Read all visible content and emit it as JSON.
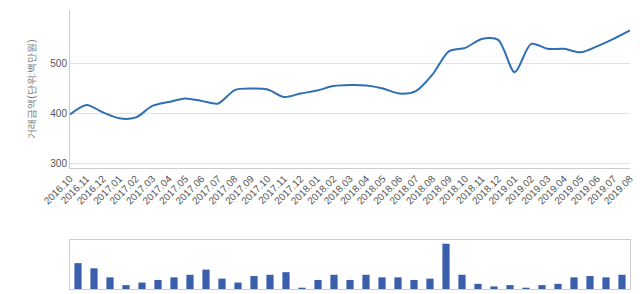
{
  "chart_data": [
    {
      "type": "line",
      "y_label": "거래금액(단위:백만원)",
      "categories": [
        "2016.10",
        "2016.11",
        "2016.12",
        "2017.01",
        "2017.02",
        "2017.03",
        "2017.04",
        "2017.05",
        "2017.06",
        "2017.07",
        "2017.08",
        "2017.09",
        "2017.10",
        "2017.11",
        "2017.12",
        "2018.01",
        "2018.02",
        "2018.03",
        "2018.04",
        "2018.05",
        "2018.06",
        "2018.07",
        "2018.08",
        "2018.09",
        "2018.10",
        "2018.11",
        "2018.12",
        "2019.01",
        "2019.02",
        "2019.03",
        "2019.04",
        "2019.05",
        "2019.06",
        "2019.07",
        "2019.08"
      ],
      "values": [
        398,
        417,
        402,
        390,
        392,
        415,
        423,
        430,
        425,
        420,
        447,
        450,
        448,
        433,
        440,
        446,
        455,
        457,
        456,
        450,
        440,
        445,
        478,
        525,
        532,
        550,
        548,
        483,
        540,
        530,
        530,
        523,
        535,
        550,
        567
      ],
      "color": "#2f6fb2",
      "line_style": "spline",
      "ylim": [
        290,
        608
      ],
      "yticks": [
        300,
        400,
        500
      ],
      "grid": true
    },
    {
      "type": "bar",
      "categories": [
        "2016.10",
        "2016.11",
        "2016.12",
        "2017.01",
        "2017.02",
        "2017.03",
        "2017.04",
        "2017.05",
        "2017.06",
        "2017.07",
        "2017.08",
        "2017.09",
        "2017.10",
        "2017.11",
        "2017.12",
        "2018.01",
        "2018.02",
        "2018.03",
        "2018.04",
        "2018.05",
        "2018.06",
        "2018.07",
        "2018.08",
        "2018.09",
        "2018.10",
        "2018.11",
        "2018.12",
        "2019.01",
        "2019.02",
        "2019.03",
        "2019.04",
        "2019.05",
        "2019.06",
        "2019.07",
        "2019.08"
      ],
      "values": [
        20,
        16,
        9,
        3,
        5,
        7,
        9,
        11,
        15,
        8,
        5,
        10,
        11,
        13,
        1,
        7,
        11,
        7,
        11,
        9,
        9,
        7,
        8,
        35,
        11,
        4,
        2,
        3,
        1,
        3,
        4,
        9,
        10,
        9,
        11
      ],
      "color": "#3a5fad",
      "ylim": [
        0,
        38
      ],
      "tick_labels": false,
      "grid": false
    }
  ]
}
